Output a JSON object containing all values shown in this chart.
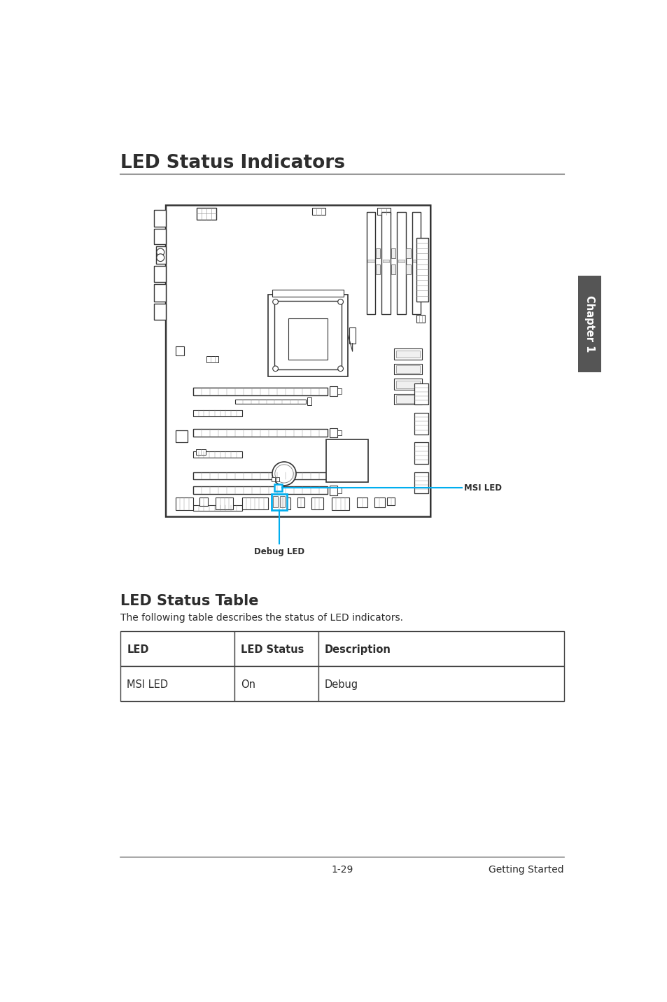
{
  "title": "LED Status Indicators",
  "section2_title": "LED Status Table",
  "section2_desc": "The following table describes the status of LED indicators.",
  "table_headers": [
    "LED",
    "LED Status",
    "Description"
  ],
  "table_rows": [
    [
      "MSI LED",
      "On",
      "Debug"
    ]
  ],
  "footer_left": "1-29",
  "footer_right": "Getting Started",
  "chapter_label": "Chapter 1",
  "msi_led_label": "MSI LED",
  "debug_led_label": "Debug LED",
  "bg_color": "#ffffff",
  "title_color": "#2d2d2d",
  "line_color": "#999999",
  "table_border_color": "#555555",
  "cyan_color": "#00aeef",
  "board_edge": "#333333",
  "comp_edge": "#333333",
  "comp_fill": "#ffffff"
}
